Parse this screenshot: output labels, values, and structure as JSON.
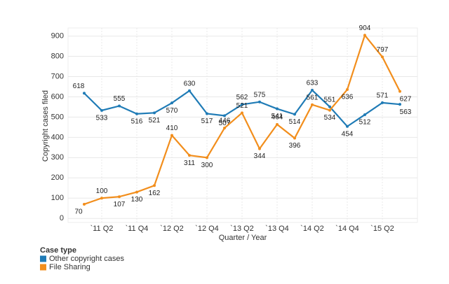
{
  "chart_data": {
    "type": "line",
    "y_label": "Copyright cases filed",
    "x_label": "Quarter / Year",
    "legend_title": "Case type",
    "categories": [
      null,
      "`11 Q2",
      null,
      "`11 Q4",
      null,
      "`12 Q2",
      null,
      "`12 Q4",
      null,
      "`13 Q2",
      null,
      "`13 Q4",
      null,
      "`14 Q2",
      null,
      "`14 Q4",
      null,
      "`15 Q2",
      null
    ],
    "series": [
      {
        "name": "Other copyright cases",
        "color": "#1f7bb6",
        "values": [
          618,
          533,
          555,
          516,
          521,
          570,
          630,
          517,
          507,
          562,
          575,
          541,
          514,
          633,
          551,
          454,
          512,
          571,
          563
        ]
      },
      {
        "name": "File Sharing",
        "color": "#f28e1c",
        "values": [
          70,
          100,
          107,
          130,
          162,
          410,
          311,
          300,
          446,
          521,
          344,
          464,
          396,
          561,
          534,
          636,
          904,
          797,
          627
        ]
      }
    ],
    "ylim": [
      -20,
      940
    ],
    "yticks": [
      0,
      100,
      200,
      300,
      400,
      500,
      600,
      700,
      800,
      900
    ],
    "grid": true,
    "legend": "bottom-left"
  }
}
